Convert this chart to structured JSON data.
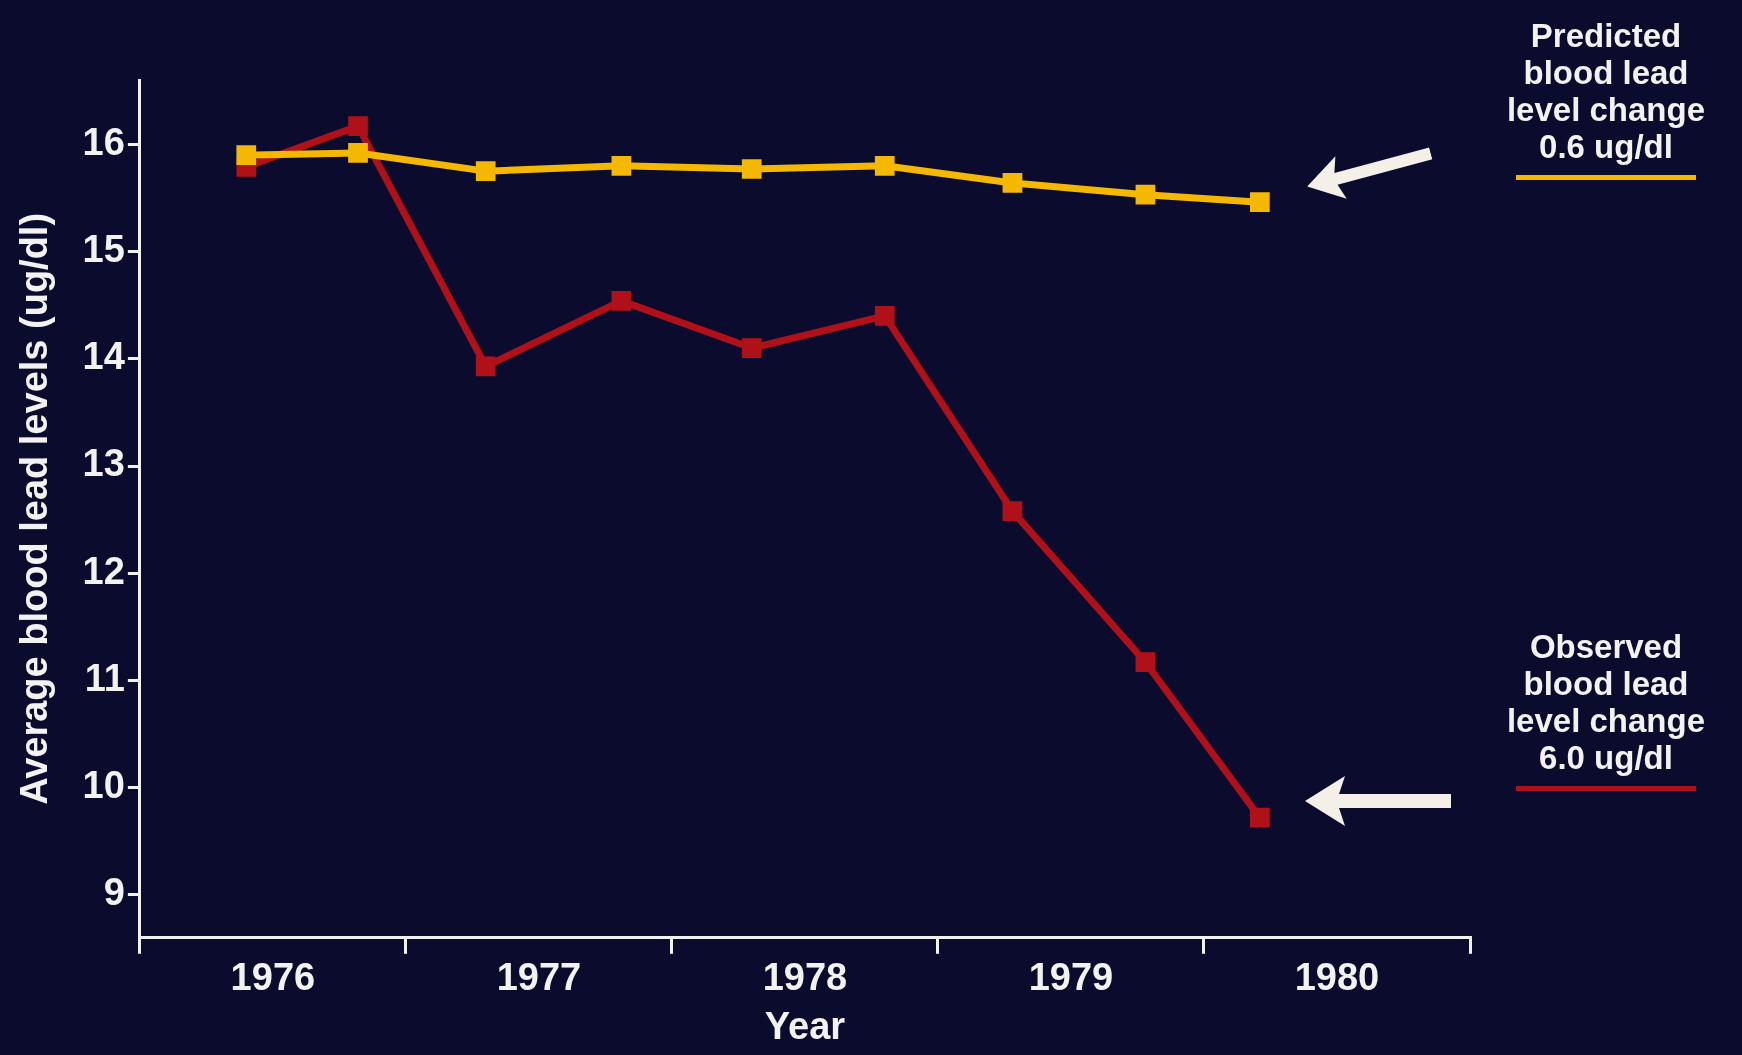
{
  "chart_data": {
    "type": "line",
    "xlabel": "Year",
    "ylabel": "Average blood lead levels (ug/dl)",
    "xlim": [
      1976,
      1981
    ],
    "xticks": [
      {
        "value": 1976,
        "label": null
      },
      {
        "value": 1976.5,
        "label": "1976"
      },
      {
        "value": 1977,
        "label": null
      },
      {
        "value": 1977.5,
        "label": "1977"
      },
      {
        "value": 1978,
        "label": null
      },
      {
        "value": 1978.5,
        "label": "1978"
      },
      {
        "value": 1979,
        "label": null
      },
      {
        "value": 1979.5,
        "label": "1979"
      },
      {
        "value": 1980,
        "label": null
      },
      {
        "value": 1980.5,
        "label": "1980"
      },
      {
        "value": 1981,
        "label": null
      }
    ],
    "ylim": [
      8.6,
      16.6
    ],
    "yticks": [
      9,
      10,
      11,
      12,
      13,
      14,
      15,
      16
    ],
    "grid": false,
    "legend": "right",
    "marker": "square",
    "line_style": "solid",
    "x": [
      1976.4,
      1976.82,
      1977.3,
      1977.81,
      1978.3,
      1978.8,
      1979.28,
      1979.78,
      1980.21
    ],
    "series": [
      {
        "name": "Predicted blood lead level change 0.6 ug/dl",
        "color": "#f5b800",
        "values": [
          15.9,
          15.92,
          15.75,
          15.8,
          15.77,
          15.8,
          15.64,
          15.53,
          15.46
        ]
      },
      {
        "name": "Observed blood lead level change 6.0 ug/dl",
        "color": "#b01018",
        "values": [
          15.79,
          16.17,
          13.93,
          14.54,
          14.1,
          14.4,
          12.58,
          11.17,
          9.72
        ]
      }
    ]
  }
}
